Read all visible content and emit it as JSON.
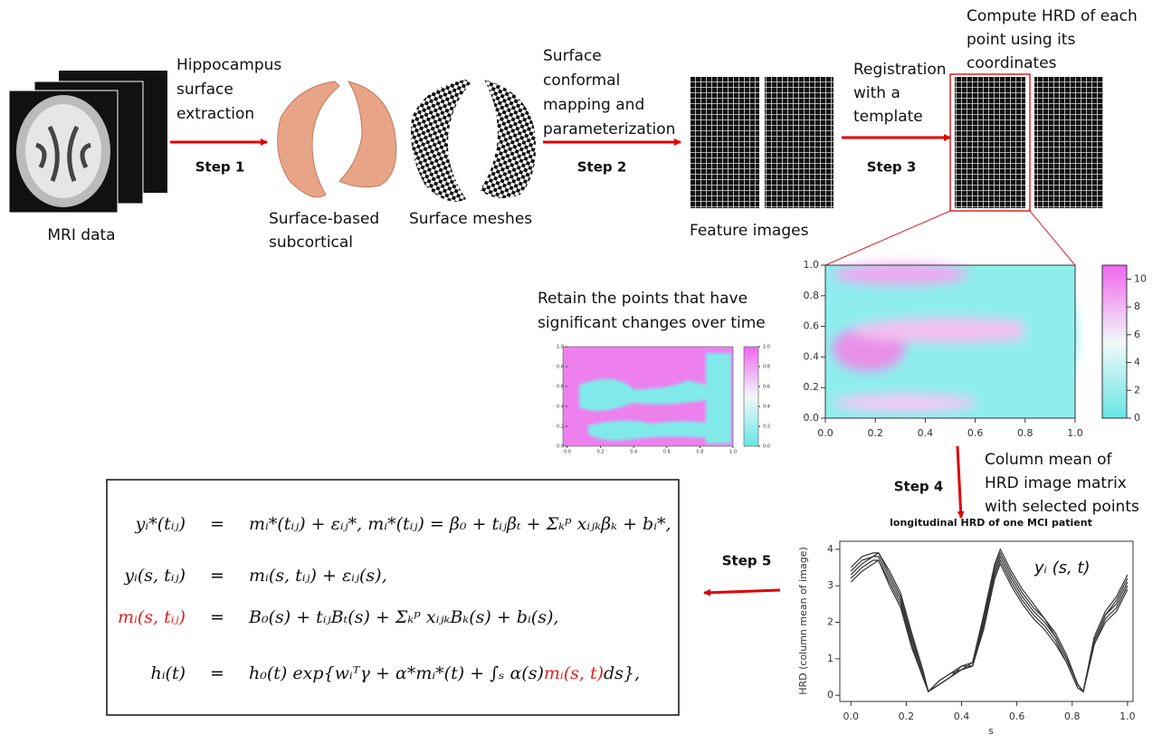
{
  "labels": {
    "mri": [
      "MRI data"
    ],
    "extraction": [
      "Hippocampus",
      "surface",
      "extraction"
    ],
    "subcortical": [
      "Surface-based",
      "subcortical"
    ],
    "meshes": [
      "Surface meshes"
    ],
    "mapping": [
      "Surface",
      "conformal",
      "mapping and",
      "parameterization"
    ],
    "features": [
      "Feature images"
    ],
    "registration": [
      "Registration",
      "with a",
      "template"
    ],
    "compute": [
      "Compute HRD of each",
      "point using its",
      "coordinates"
    ],
    "retain": [
      "Retain the points that have",
      "significant changes over time"
    ],
    "column_mean": [
      "Column mean of",
      "HRD image matrix",
      "with selected points"
    ]
  },
  "steps": [
    "Step 1",
    "Step 2",
    "Step 3",
    "Step 4",
    "Step 5"
  ],
  "heatmap": {
    "xlim": [
      0,
      1
    ],
    "ylim": [
      0,
      1
    ],
    "xticks": [
      {
        "value": 0,
        "label": "0.0"
      },
      {
        "value": 0.2,
        "label": "0.2"
      },
      {
        "value": 0.4,
        "label": "0.4"
      },
      {
        "value": 0.6,
        "label": "0.6"
      },
      {
        "value": 0.8,
        "label": "0.8"
      },
      {
        "value": 1,
        "label": "1.0"
      }
    ],
    "yticks": [
      {
        "value": 0,
        "label": "0.0"
      },
      {
        "value": 0.2,
        "label": "0.2"
      },
      {
        "value": 0.4,
        "label": "0.4"
      },
      {
        "value": 0.6,
        "label": "0.6"
      },
      {
        "value": 0.8,
        "label": "0.8"
      },
      {
        "value": 1,
        "label": "1.0"
      }
    ],
    "colorbar_lim": [
      0,
      11
    ],
    "colorbar_ticks": [
      0,
      2,
      4,
      6,
      8,
      10
    ]
  },
  "significance_map": {
    "xlim": [
      0,
      1
    ],
    "ylim": [
      0,
      1
    ],
    "xticks": [
      {
        "value": 0,
        "label": "0.0"
      },
      {
        "value": 0.2,
        "label": "0.2"
      },
      {
        "value": 0.4,
        "label": "0.4"
      },
      {
        "value": 0.6,
        "label": "0.6"
      },
      {
        "value": 0.8,
        "label": "0.8"
      },
      {
        "value": 1,
        "label": "1.0"
      }
    ],
    "yticks": [
      {
        "value": 0,
        "label": "0.0"
      },
      {
        "value": 0.2,
        "label": "0.2"
      },
      {
        "value": 0.4,
        "label": "0.4"
      },
      {
        "value": 0.6,
        "label": "0.6"
      },
      {
        "value": 0.8,
        "label": "0.8"
      },
      {
        "value": 1,
        "label": "1.0"
      }
    ],
    "colorbar_lim": [
      0,
      1
    ],
    "colorbar_ticks": [
      {
        "value": 0,
        "label": "0.0"
      },
      {
        "value": 0.2,
        "label": "0.2"
      },
      {
        "value": 0.4,
        "label": "0.4"
      },
      {
        "value": 0.6,
        "label": "0.6"
      },
      {
        "value": 0.8,
        "label": "0.8"
      },
      {
        "value": 1,
        "label": "1.0"
      }
    ]
  },
  "line_plot": {
    "title": "longitudinal HRD of one MCI patient",
    "xlabel": "s",
    "ylabel": "HRD (column mean of image)",
    "annotation": "yᵢ (s, t)",
    "xlim": [
      -0.04,
      1.02
    ],
    "ylim": [
      -0.17,
      4.22
    ],
    "xticks": [
      {
        "value": 0,
        "label": "0.0"
      },
      {
        "value": 0.2,
        "label": "0.2"
      },
      {
        "value": 0.4,
        "label": "0.4"
      },
      {
        "value": 0.6,
        "label": "0.6"
      },
      {
        "value": 0.8,
        "label": "0.8"
      },
      {
        "value": 1,
        "label": "1.0"
      }
    ],
    "yticks": [
      0,
      1,
      2,
      3,
      4
    ],
    "x": [
      0,
      0.04,
      0.08,
      0.1,
      0.14,
      0.18,
      0.22,
      0.26,
      0.28,
      0.32,
      0.36,
      0.4,
      0.44,
      0.48,
      0.52,
      0.54,
      0.58,
      0.62,
      0.66,
      0.7,
      0.74,
      0.78,
      0.82,
      0.84,
      0.88,
      0.92,
      0.96,
      1.0
    ],
    "series": [
      {
        "color": "#333333",
        "values": [
          3.3,
          3.6,
          3.8,
          3.8,
          3.2,
          2.6,
          1.5,
          0.6,
          0.1,
          0.3,
          0.5,
          0.8,
          0.8,
          2.0,
          3.4,
          3.8,
          3.2,
          2.7,
          2.3,
          2.0,
          1.6,
          1.0,
          0.3,
          0.1,
          1.5,
          2.2,
          2.5,
          3.1
        ]
      },
      {
        "color": "#333333",
        "values": [
          3.5,
          3.8,
          3.9,
          3.9,
          3.4,
          2.8,
          1.7,
          0.7,
          0.1,
          0.4,
          0.6,
          0.7,
          0.9,
          2.2,
          3.6,
          4.0,
          3.4,
          2.9,
          2.5,
          2.1,
          1.7,
          1.1,
          0.3,
          0.1,
          1.6,
          2.3,
          2.7,
          3.3
        ]
      },
      {
        "color": "#333333",
        "values": [
          3.1,
          3.4,
          3.6,
          3.7,
          3.0,
          2.4,
          1.3,
          0.5,
          0.1,
          0.3,
          0.5,
          0.7,
          0.8,
          1.8,
          3.2,
          3.6,
          3.0,
          2.5,
          2.1,
          1.8,
          1.4,
          0.9,
          0.2,
          0.1,
          1.4,
          2.0,
          2.3,
          2.9
        ]
      },
      {
        "color": "#333333",
        "values": [
          3.4,
          3.7,
          3.8,
          3.9,
          3.3,
          2.7,
          1.6,
          0.6,
          0.1,
          0.4,
          0.6,
          0.8,
          0.9,
          2.1,
          3.5,
          3.9,
          3.3,
          2.8,
          2.4,
          2.1,
          1.6,
          1.0,
          0.3,
          0.1,
          1.5,
          2.2,
          2.6,
          3.2
        ]
      },
      {
        "color": "#333333",
        "values": [
          3.2,
          3.5,
          3.7,
          3.7,
          3.1,
          2.5,
          1.4,
          0.5,
          0.1,
          0.3,
          0.5,
          0.7,
          0.8,
          1.9,
          3.3,
          3.7,
          3.1,
          2.6,
          2.2,
          1.9,
          1.5,
          0.9,
          0.2,
          0.1,
          1.4,
          2.1,
          2.4,
          3.0
        ]
      }
    ]
  },
  "equations": [
    {
      "lhs": [
        {
          "text": "yᵢ*(tᵢⱼ)"
        }
      ],
      "relation": "=",
      "rhs": [
        {
          "text": "mᵢ*(tᵢⱼ) + εᵢⱼ*,    mᵢ*(tᵢⱼ) = β₀ + tᵢⱼβₜ + Σₖᵖ xᵢⱼₖβₖ + bᵢ*,"
        }
      ]
    },
    {
      "lhs": [
        {
          "text": "yᵢ(s, tᵢⱼ)"
        }
      ],
      "relation": "=",
      "rhs": [
        {
          "text": "mᵢ(s, tᵢⱼ) + εᵢⱼ(s),"
        }
      ]
    },
    {
      "lhs": [
        {
          "text": "mᵢ(s, tᵢⱼ)",
          "color": "#e02020"
        }
      ],
      "relation": "=",
      "rhs": [
        {
          "text": "B₀(s) + tᵢⱼBₜ(s) + Σₖᵖ xᵢⱼₖBₖ(s) + bᵢ(s),"
        }
      ]
    },
    {
      "lhs": [
        {
          "text": "hᵢ(t)"
        }
      ],
      "relation": "=",
      "rhs": [
        {
          "text": "h₀(t) exp{wᵢᵀγ + α*mᵢ*(t) + ∫ₛ α(s)"
        },
        {
          "text": "mᵢ(s, t)",
          "color": "#e02020"
        },
        {
          "text": "ds},"
        }
      ]
    }
  ]
}
